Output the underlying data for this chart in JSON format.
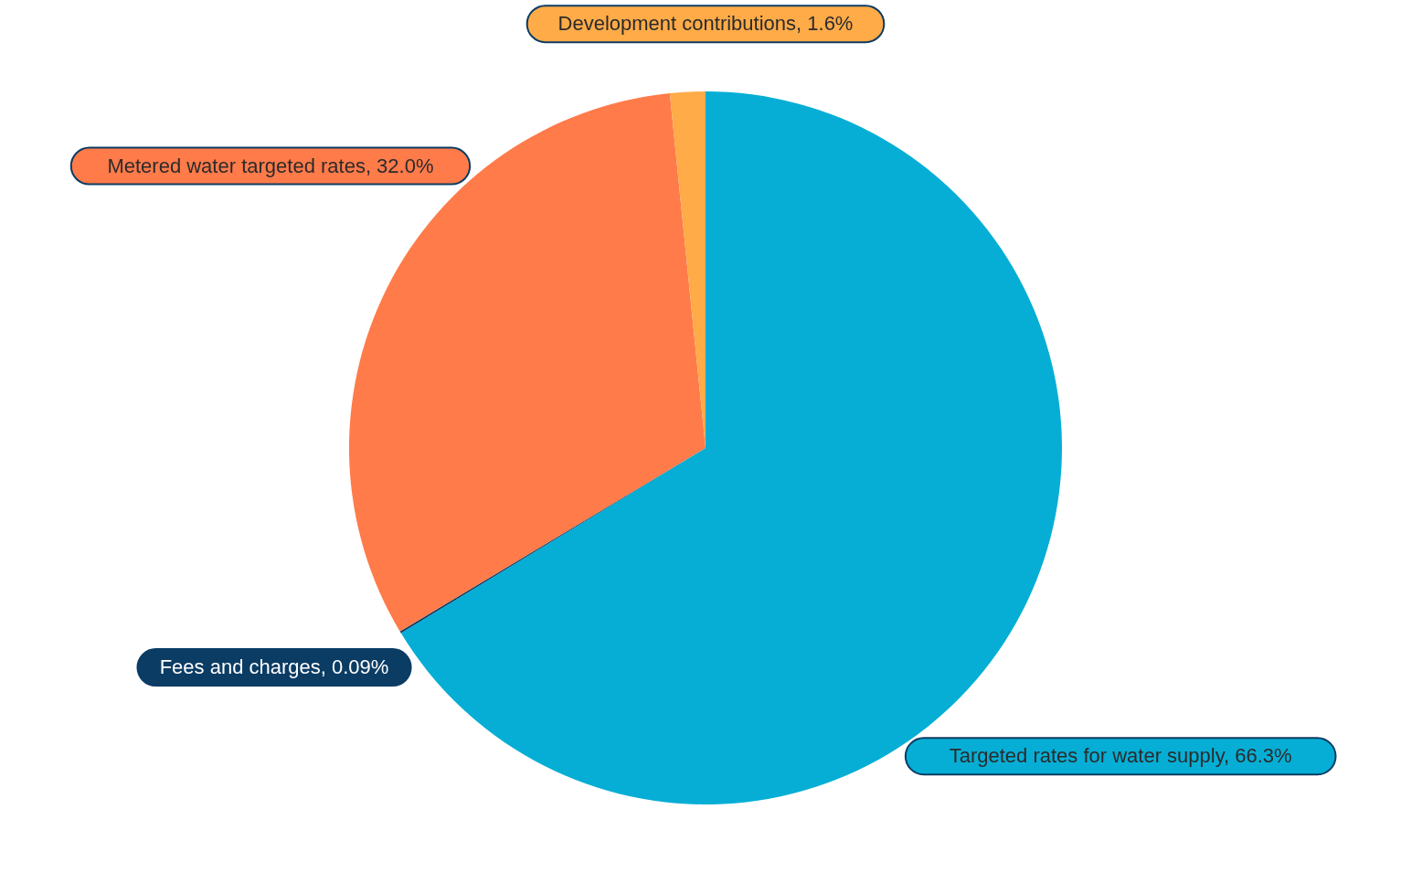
{
  "chart_data": {
    "type": "pie",
    "categories": [
      "Targeted rates for water supply",
      "Fees and charges",
      "Metered water targeted rates",
      "Development contributions"
    ],
    "values": [
      66.3,
      0.09,
      32.0,
      1.6
    ],
    "value_labels": [
      "66.3%",
      "0.09%",
      "32.0%",
      "1.6%"
    ],
    "colors": [
      "#06aed5",
      "#0b3c64",
      "#ff7b4a",
      "#ffab48"
    ]
  }
}
